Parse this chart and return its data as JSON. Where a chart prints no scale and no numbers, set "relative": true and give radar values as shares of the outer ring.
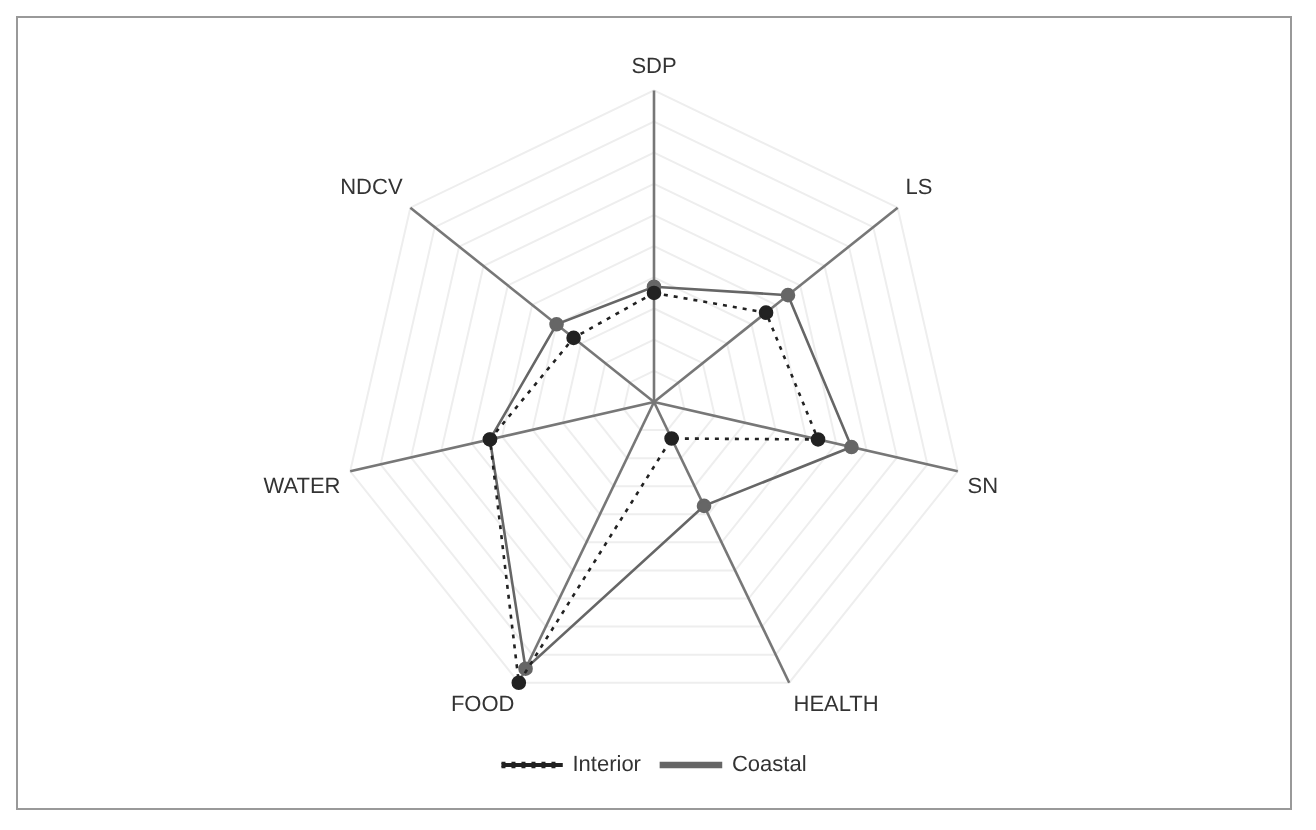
{
  "chart_data": {
    "type": "radar",
    "relative": true,
    "categories": [
      "SDP",
      "LS",
      "SN",
      "HEALTH",
      "FOOD",
      "WATER",
      "NDCV"
    ],
    "series": [
      {
        "name": "Interior",
        "color": "#222222",
        "line_style": "dotted",
        "values": [
          0.35,
          0.46,
          0.54,
          0.13,
          1.0,
          0.54,
          0.33
        ]
      },
      {
        "name": "Coastal",
        "color": "#666666",
        "line_style": "solid",
        "values": [
          0.37,
          0.55,
          0.65,
          0.37,
          0.95,
          0.54,
          0.4
        ]
      }
    ],
    "grid": true,
    "marker": "circle",
    "legend": "bottom"
  }
}
